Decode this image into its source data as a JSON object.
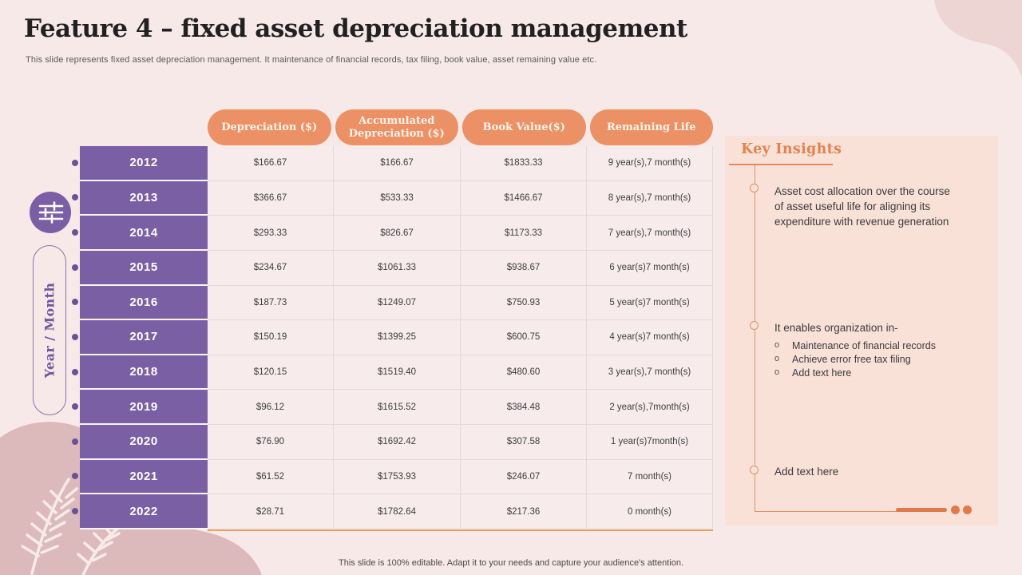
{
  "slide": {
    "title": "Feature 4 – fixed asset depreciation management",
    "subtitle": "This slide represents fixed asset depreciation management. It maintenance of financial records, tax filing, book value,  asset remaining value etc.",
    "footer": "This slide is 100% editable. Adapt it to your needs and capture your audience's attention."
  },
  "table": {
    "axis_label": "Year / Month",
    "columns": [
      "Depreciation ($)",
      "Accumulated Depreciation ($)",
      "Book Value($)",
      "Remaining Life"
    ],
    "rows": [
      {
        "year": "2012",
        "depreciation": "$166.67",
        "accumulated": "$166.67",
        "book_value": "$1833.33",
        "remaining_life": "9 year(s),7 month(s)"
      },
      {
        "year": "2013",
        "depreciation": "$366.67",
        "accumulated": "$533.33",
        "book_value": "$1466.67",
        "remaining_life": "8 year(s),7 month(s)"
      },
      {
        "year": "2014",
        "depreciation": "$293.33",
        "accumulated": "$826.67",
        "book_value": "$1173.33",
        "remaining_life": "7 year(s),7 month(s)"
      },
      {
        "year": "2015",
        "depreciation": "$234.67",
        "accumulated": "$1061.33",
        "book_value": "$938.67",
        "remaining_life": "6 year(s)7 month(s)"
      },
      {
        "year": "2016",
        "depreciation": "$187.73",
        "accumulated": "$1249.07",
        "book_value": "$750.93",
        "remaining_life": "5 year(s)7 month(s)"
      },
      {
        "year": "2017",
        "depreciation": "$150.19",
        "accumulated": "$1399.25",
        "book_value": "$600.75",
        "remaining_life": "4 year(s)7 month(s)"
      },
      {
        "year": "2018",
        "depreciation": "$120.15",
        "accumulated": "$1519.40",
        "book_value": "$480.60",
        "remaining_life": "3 year(s),7 month(s)"
      },
      {
        "year": "2019",
        "depreciation": "$96.12",
        "accumulated": "$1615.52",
        "book_value": "$384.48",
        "remaining_life": "2 year(s),7month(s)"
      },
      {
        "year": "2020",
        "depreciation": "$76.90",
        "accumulated": "$1692.42",
        "book_value": "$307.58",
        "remaining_life": "1 year(s)7month(s)"
      },
      {
        "year": "2021",
        "depreciation": "$61.52",
        "accumulated": "$1753.93",
        "book_value": "$246.07",
        "remaining_life": "7 month(s)"
      },
      {
        "year": "2022",
        "depreciation": "$28.71",
        "accumulated": "$1782.64",
        "book_value": "$217.36",
        "remaining_life": "0 month(s)"
      }
    ]
  },
  "insights": {
    "title": "Key Insights",
    "items": [
      {
        "text": "Asset cost allocation over the course of asset useful life for aligning its expenditure with revenue generation"
      },
      {
        "text": "It enables organization in-",
        "sub_items": [
          "Maintenance of financial records",
          "Achieve error free tax filing",
          "Add text here"
        ]
      },
      {
        "text": "Add text here"
      }
    ]
  },
  "icons": {
    "badge": "sliders-icon",
    "row_marker": "row-marker-icon",
    "timeline_node": "timeline-node-icon",
    "sub_bullet": "circle-bullet-icon"
  },
  "colors": {
    "slide_bg": "#F7E9E7",
    "accent_orange": "#EC9166",
    "accent_orange_dark": "#E07A4B",
    "purple": "#7A5FA5",
    "panel_bg": "#F9E1D8",
    "blob_pink": "#DCB9BB",
    "corner_blob": "#ECD5D2",
    "dark_text": "#3D3D3D"
  }
}
